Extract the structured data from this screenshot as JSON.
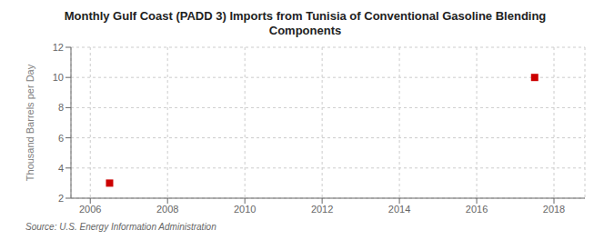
{
  "chart_data": {
    "type": "scatter",
    "title": "Monthly Gulf Coast (PADD 3) Imports from Tunisia of Conventional Gasoline Blending\nComponents",
    "ylabel": "Thousand Barrels per Day",
    "annotation": "Source: U.S. Energy Information Administration",
    "x": [
      2006.5,
      2017.5
    ],
    "values": [
      3.0,
      10.0
    ],
    "color": "#cc0000",
    "marker": "square",
    "xlim": [
      2005.5,
      2018.8
    ],
    "ylim": [
      2,
      12
    ],
    "xticks": [
      2006,
      2008,
      2010,
      2012,
      2014,
      2016,
      2018
    ],
    "yticks": [
      2,
      4,
      6,
      8,
      10,
      12
    ],
    "grid": true
  }
}
